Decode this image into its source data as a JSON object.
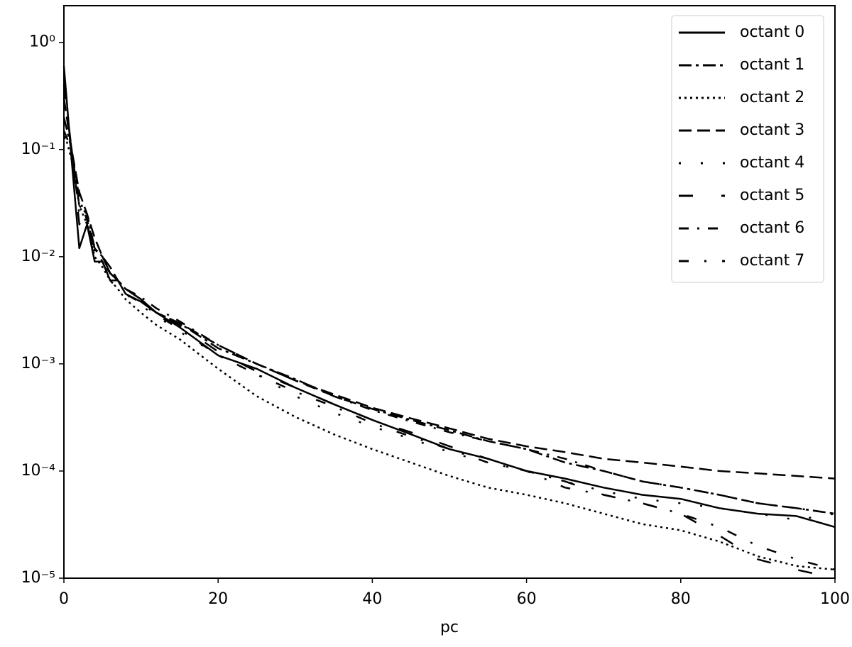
{
  "chart_data": {
    "type": "line",
    "xlabel": "pc",
    "yscale": "log",
    "legend": "upper right",
    "x": [
      0,
      1,
      2,
      3,
      4,
      5,
      6,
      7,
      8,
      10,
      12,
      15,
      20,
      25,
      30,
      35,
      40,
      45,
      50,
      55,
      60,
      65,
      70,
      75,
      80,
      85,
      90,
      95,
      100
    ],
    "xlim": [
      0,
      100
    ],
    "xticks": [
      0,
      20,
      40,
      60,
      80,
      100
    ],
    "ylim": [
      1e-05,
      2.2
    ],
    "yticks": [
      {
        "value": 1e-05,
        "label": "10⁻⁵"
      },
      {
        "value": 0.0001,
        "label": "10⁻⁴"
      },
      {
        "value": 0.001,
        "label": "10⁻³"
      },
      {
        "value": 0.01,
        "label": "10⁻²"
      },
      {
        "value": 0.1,
        "label": "10⁻¹"
      },
      {
        "value": 1,
        "label": "10⁰"
      }
    ],
    "series": [
      {
        "name": "octant 0",
        "color": "#000000",
        "linestyle": "solid",
        "values": [
          0.6,
          0.08,
          0.012,
          0.02,
          0.009,
          0.009,
          0.006,
          0.006,
          0.0045,
          0.0038,
          0.003,
          0.0022,
          0.0012,
          0.0009,
          0.0006,
          0.00042,
          0.0003,
          0.00022,
          0.00016,
          0.00013,
          0.0001,
          8.5e-05,
          7e-05,
          6e-05,
          5.5e-05,
          4.5e-05,
          4e-05,
          3.8e-05,
          3e-05
        ]
      },
      {
        "name": "octant 1",
        "color": "#000000",
        "linestyle": "dashdot",
        "values": [
          0.2,
          0.1,
          0.03,
          0.025,
          0.012,
          0.01,
          0.007,
          0.006,
          0.005,
          0.004,
          0.003,
          0.0024,
          0.0014,
          0.001,
          0.00072,
          0.0005,
          0.00038,
          0.0003,
          0.00024,
          0.00019,
          0.00016,
          0.00012,
          0.0001,
          8e-05,
          7e-05,
          6e-05,
          5e-05,
          4.5e-05,
          4e-05
        ]
      },
      {
        "name": "octant 2",
        "color": "#000000",
        "linestyle": "dotted",
        "values": [
          0.15,
          0.08,
          0.03,
          0.02,
          0.01,
          0.008,
          0.006,
          0.005,
          0.004,
          0.003,
          0.0023,
          0.0017,
          0.0009,
          0.0005,
          0.00032,
          0.00022,
          0.00016,
          0.00012,
          9e-05,
          7e-05,
          6e-05,
          5e-05,
          4e-05,
          3.2e-05,
          2.8e-05,
          2.2e-05,
          1.6e-05,
          1.3e-05,
          1.2e-05
        ]
      },
      {
        "name": "octant 3",
        "color": "#000000",
        "linestyle": "dashed",
        "values": [
          0.3,
          0.1,
          0.04,
          0.025,
          0.015,
          0.01,
          0.008,
          0.006,
          0.005,
          0.004,
          0.003,
          0.0024,
          0.0015,
          0.001,
          0.0007,
          0.00052,
          0.00039,
          0.00031,
          0.00025,
          0.0002,
          0.00017,
          0.00015,
          0.00013,
          0.00012,
          0.00011,
          0.0001,
          9.5e-05,
          9e-05,
          8.5e-05
        ]
      },
      {
        "name": "octant 4",
        "color": "#000000",
        "linestyle": "loosely dotted",
        "values": [
          0.13,
          0.09,
          0.03,
          0.02,
          0.011,
          0.009,
          0.006,
          0.005,
          0.0045,
          0.0035,
          0.0028,
          0.002,
          0.0012,
          0.0008,
          0.0005,
          0.00035,
          0.00026,
          0.0002,
          0.00015,
          0.00012,
          0.0001,
          8e-05,
          6.5e-05,
          5.5e-05,
          5e-05,
          4.5e-05,
          4e-05,
          3.5e-05,
          4e-05
        ]
      },
      {
        "name": "octant 5",
        "color": "#000000",
        "linestyle": "loosely dashed",
        "values": [
          0.4,
          0.1,
          0.02,
          0.025,
          0.01,
          0.01,
          0.007,
          0.006,
          0.005,
          0.004,
          0.003,
          0.0023,
          0.0013,
          0.00085,
          0.0006,
          0.00042,
          0.0003,
          0.00023,
          0.00017,
          0.00013,
          0.0001,
          8e-05,
          6e-05,
          5e-05,
          4e-05,
          2.5e-05,
          1.5e-05,
          1.2e-05,
          1e-05
        ]
      },
      {
        "name": "octant 6",
        "color": "#000000",
        "linestyle": "dashdotted",
        "values": [
          0.15,
          0.1,
          0.035,
          0.022,
          0.012,
          0.009,
          0.007,
          0.006,
          0.005,
          0.0042,
          0.0033,
          0.0025,
          0.0015,
          0.001,
          0.0007,
          0.0005,
          0.00037,
          0.00029,
          0.00023,
          0.00019,
          0.00016,
          0.00013,
          0.0001,
          8e-05,
          7e-05,
          6e-05,
          5e-05,
          4.5e-05,
          4e-05
        ]
      },
      {
        "name": "octant 7",
        "color": "#000000",
        "linestyle": "loosely dashdotted",
        "values": [
          0.3,
          0.1,
          0.025,
          0.02,
          0.011,
          0.009,
          0.006,
          0.006,
          0.0045,
          0.0037,
          0.0029,
          0.0021,
          0.0012,
          0.0008,
          0.00055,
          0.0004,
          0.00028,
          0.00021,
          0.00016,
          0.00012,
          0.0001,
          7e-05,
          6e-05,
          5e-05,
          4e-05,
          3e-05,
          2e-05,
          1.5e-05,
          1.2e-05
        ]
      }
    ]
  }
}
